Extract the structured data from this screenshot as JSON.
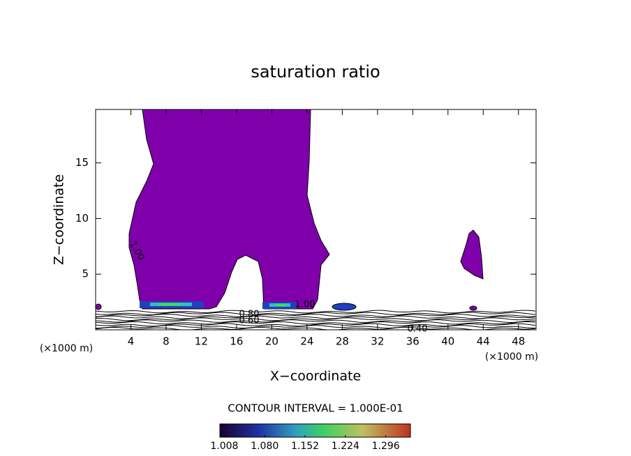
{
  "chart_data": {
    "type": "contour",
    "title": "saturation ratio",
    "x_label": "X−coordinate",
    "y_label": "Z−coordinate",
    "x_unit": "(×1000 m)",
    "xlim": [
      0,
      50
    ],
    "xticks": [
      4,
      8,
      12,
      16,
      20,
      24,
      28,
      32,
      36,
      40,
      44,
      48
    ],
    "ylim": [
      0,
      19.8
    ],
    "yticks": [
      5,
      10,
      15
    ],
    "contour_labels": [
      "1.00",
      "0.80",
      "0.60",
      "1.00",
      "0.40"
    ],
    "contour_interval": "CONTOUR INTERVAL = 1.000E-01",
    "colorbar": {
      "lim": [
        1.0,
        1.34
      ],
      "ticks": [
        {
          "value": 1.008,
          "label": "1.008"
        },
        {
          "value": 1.08,
          "label": "1.080"
        },
        {
          "value": 1.152,
          "label": "1.152"
        },
        {
          "value": 1.224,
          "label": "1.224"
        },
        {
          "value": 1.296,
          "label": "1.296"
        }
      ]
    }
  }
}
